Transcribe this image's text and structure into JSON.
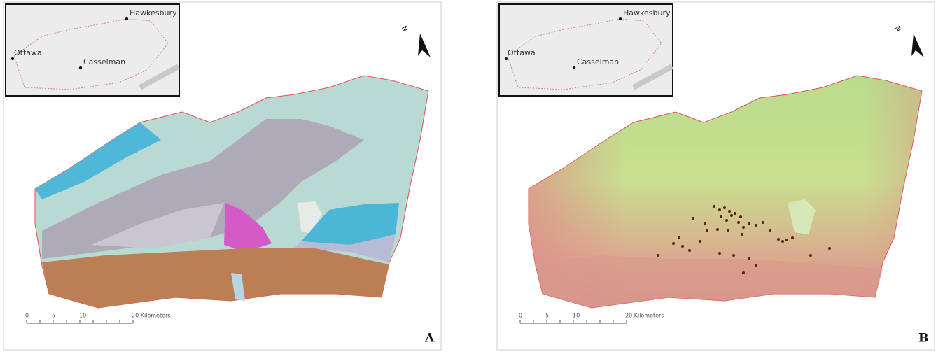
{
  "panels": [
    {
      "label": "A",
      "north": "N",
      "inset": {
        "places": [
          {
            "name": "Hawkesbury"
          },
          {
            "name": "Ottawa"
          },
          {
            "name": "Casselman"
          }
        ]
      },
      "scale": {
        "labels": [
          "0",
          "5",
          "10",
          "20 Kilometers"
        ]
      }
    },
    {
      "label": "B",
      "north": "N",
      "inset": {
        "places": [
          {
            "name": "Hawkesbury"
          },
          {
            "name": "Ottawa"
          },
          {
            "name": "Casselman"
          }
        ]
      },
      "scale": {
        "labels": [
          "0",
          "5",
          "10",
          "20 Kilometers"
        ]
      }
    }
  ]
}
